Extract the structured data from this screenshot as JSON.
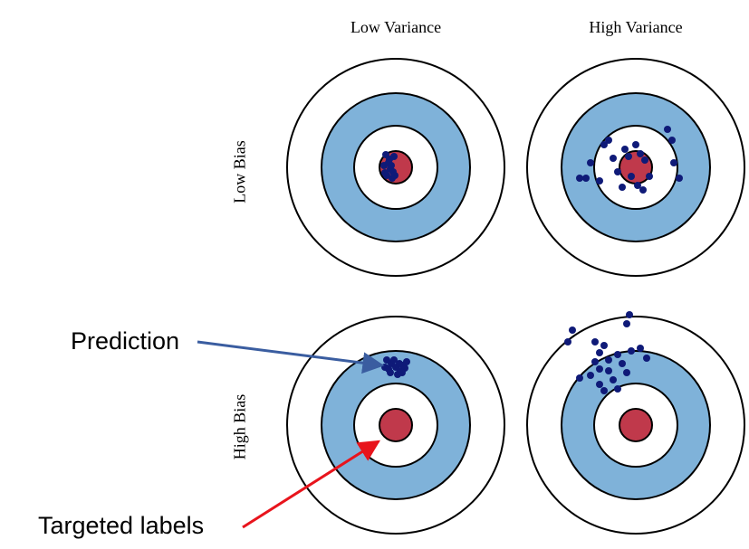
{
  "columns": [
    {
      "key": "low_variance",
      "label": "Low Variance"
    },
    {
      "key": "high_variance",
      "label": "High Variance"
    }
  ],
  "rows": [
    {
      "key": "low_bias",
      "label": "Low Bias"
    },
    {
      "key": "high_bias",
      "label": "High Bias"
    }
  ],
  "callouts": {
    "prediction": "Prediction",
    "targeted_labels": "Targeted labels"
  },
  "colors": {
    "ring_blue": "#7fb2d9",
    "bullseye_red": "#c0394b",
    "dot_navy": "#0f1a78",
    "prediction_arrow": "#3a5da0",
    "target_arrow": "#e8141c",
    "ring_stroke": "#000000"
  },
  "targets": [
    {
      "key": "low_bias_low_variance",
      "row": "low_bias",
      "column": "low_variance"
    },
    {
      "key": "low_bias_high_variance",
      "row": "low_bias",
      "column": "high_variance"
    },
    {
      "key": "high_bias_low_variance",
      "row": "high_bias",
      "column": "low_variance"
    },
    {
      "key": "high_bias_high_variance",
      "row": "high_bias",
      "column": "high_variance"
    }
  ]
}
